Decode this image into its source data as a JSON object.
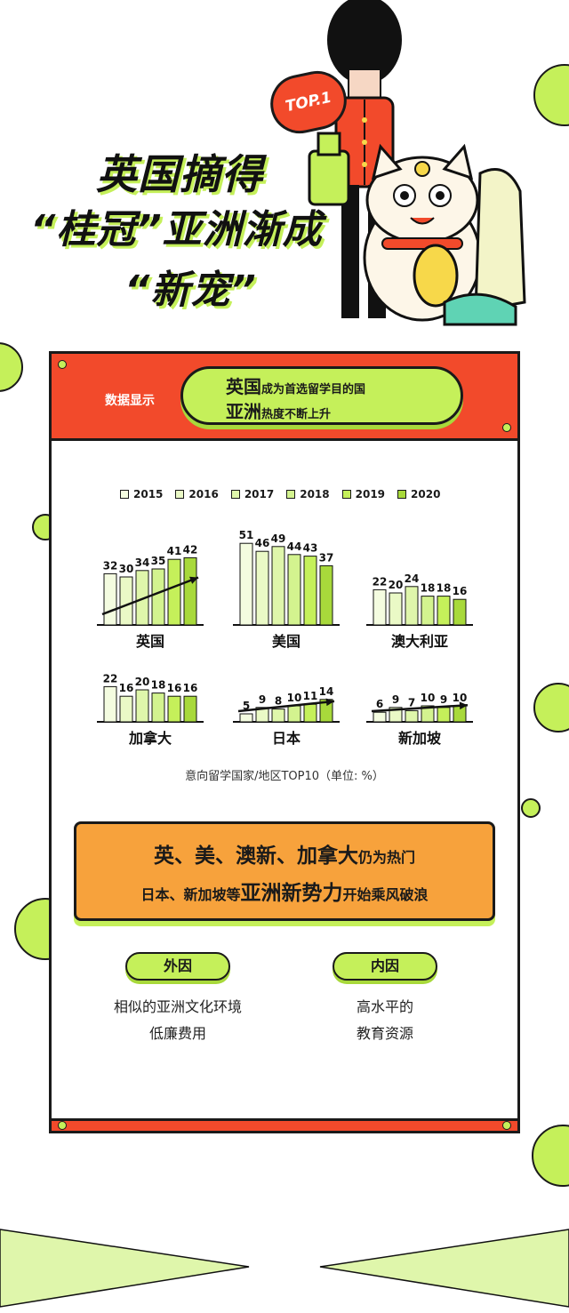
{
  "hero": {
    "badge": "TOP.1",
    "title_line1": "英国摘得",
    "title_line2": "“桂冠”亚洲渐成",
    "title_line3": "“新宠”"
  },
  "banner": {
    "label": "数据显示",
    "line1_big": "英国",
    "line1_small": "成为首选留学目的国",
    "line2_big": "亚洲",
    "line2_small": "热度不断上升"
  },
  "colors": {
    "accent_green": "#c5f05a",
    "accent_red": "#f24a2b",
    "accent_orange": "#f7a23c",
    "years": [
      "#f4fce0",
      "#eaf9c6",
      "#dff6ab",
      "#d3f38f",
      "#c5f05a",
      "#a8d93b"
    ]
  },
  "chart_data": {
    "type": "bar",
    "unit": "%",
    "caption": "意向留学国家/地区TOP10（单位: %）",
    "series_names": [
      "2015",
      "2016",
      "2017",
      "2018",
      "2019",
      "2020"
    ],
    "groups": [
      {
        "name": "英国",
        "values": [
          32,
          30,
          34,
          35,
          41,
          42
        ],
        "trend_arrow": true
      },
      {
        "name": "美国",
        "values": [
          51,
          46,
          49,
          44,
          43,
          37
        ],
        "trend_arrow": false
      },
      {
        "name": "澳大利亚",
        "values": [
          22,
          20,
          24,
          18,
          18,
          16
        ],
        "trend_arrow": false
      },
      {
        "name": "加拿大",
        "values": [
          22,
          16,
          20,
          18,
          16,
          16
        ],
        "trend_arrow": false
      },
      {
        "name": "日本",
        "values": [
          5,
          9,
          8,
          10,
          11,
          14
        ],
        "trend_arrow": true
      },
      {
        "name": "新加坡",
        "values": [
          6,
          9,
          7,
          10,
          9,
          10
        ],
        "trend_arrow": true
      }
    ]
  },
  "summary": {
    "line1_big": "英、美、澳新、加拿大",
    "line1_small": "仍为热门",
    "line2_small_a": "日本、新加坡等",
    "line2_big": "亚洲新势力",
    "line2_small_b": "开始乘风破浪"
  },
  "factors": {
    "external_label": "外因",
    "external_line1": "相似的亚洲文化环境",
    "external_line2": "低廉费用",
    "internal_label": "内因",
    "internal_line1": "高水平的",
    "internal_line2": "教育资源"
  }
}
